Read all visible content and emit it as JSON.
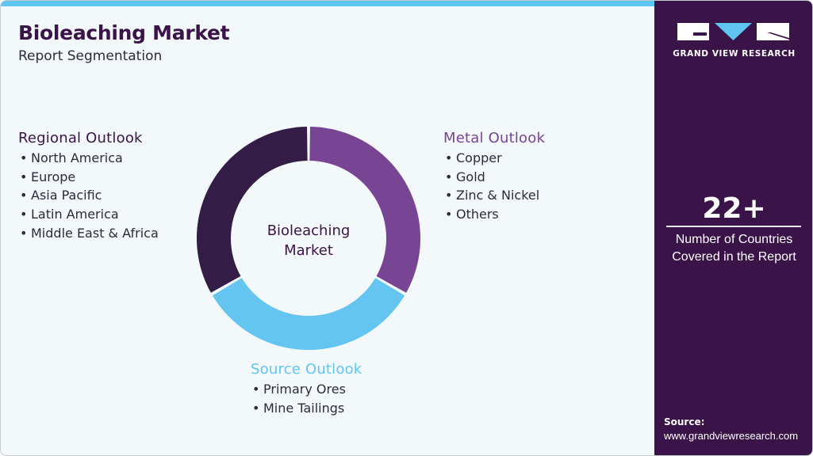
{
  "header": {
    "title": "Bioleaching Market",
    "subtitle": "Report Segmentation"
  },
  "sidebar": {
    "brand": "GRAND VIEW RESEARCH",
    "stat_value": "22+",
    "stat_label_line1": "Number of Countries",
    "stat_label_line2": "Covered in the Report",
    "source_heading": "Source:",
    "source_url": "www.grandviewresearch.com"
  },
  "donut": {
    "center_line1": "Bioleaching",
    "center_line2": "Market",
    "segments": [
      {
        "name": "Metal Outlook",
        "color": "#774593",
        "share": 33.3
      },
      {
        "name": "Source Outlook",
        "color": "#64c5f0",
        "share": 33.3
      },
      {
        "name": "Regional Outlook",
        "color": "#331d47",
        "share": 33.3
      }
    ]
  },
  "segments": {
    "regional": {
      "heading": "Regional Outlook",
      "items": [
        "North America",
        "Europe",
        "Asia Pacific",
        "Latin America",
        "Middle East & Africa"
      ]
    },
    "metal": {
      "heading": "Metal Outlook",
      "items": [
        "Copper",
        "Gold",
        "Zinc & Nickel",
        "Others"
      ]
    },
    "source": {
      "heading": "Source Outlook",
      "items": [
        "Primary Ores",
        "Mine Tailings"
      ]
    }
  },
  "colors": {
    "brand_dark": "#3a1449",
    "accent_purple": "#774593",
    "accent_blue": "#5ec6f0",
    "background": "#f3f8fb"
  }
}
